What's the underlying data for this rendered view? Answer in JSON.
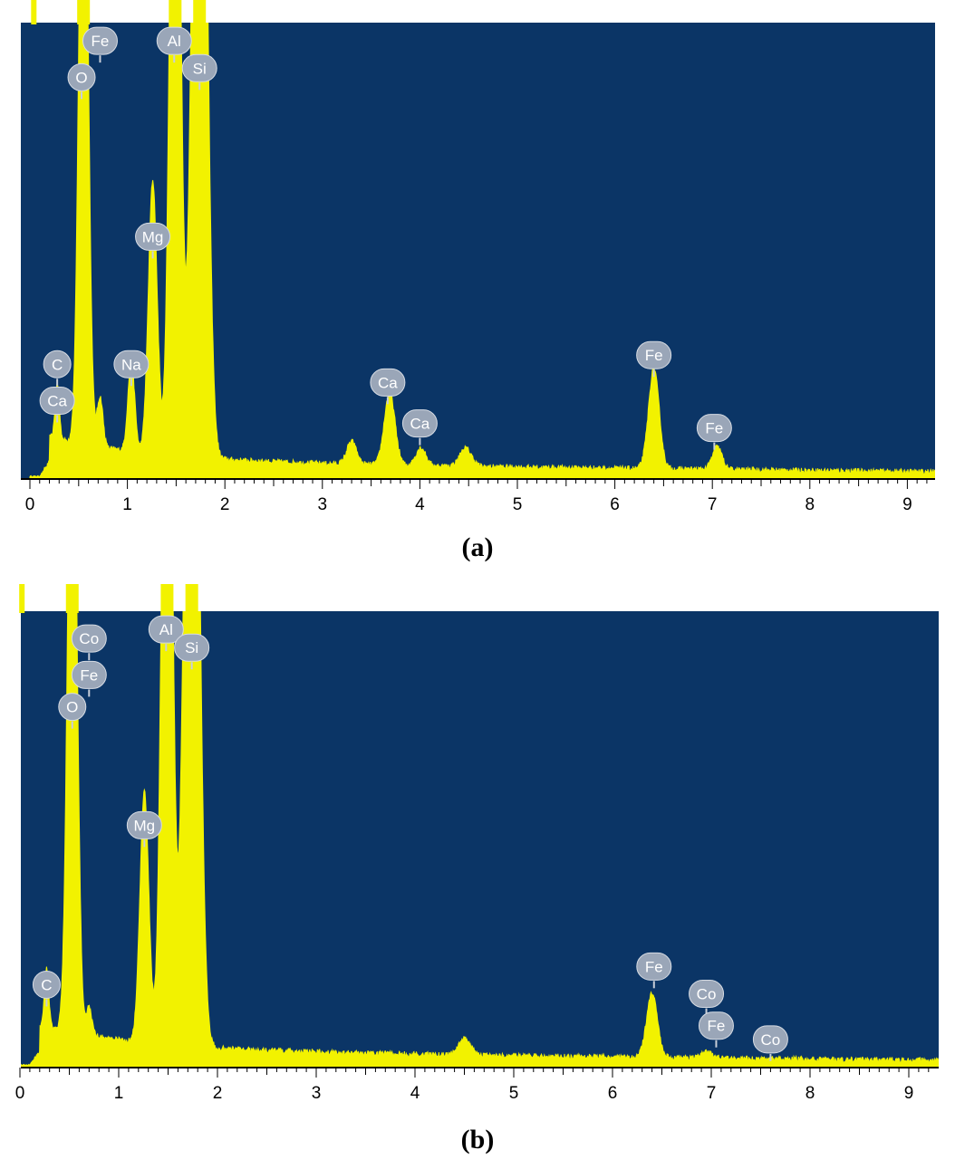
{
  "chart_data": [
    {
      "type": "area",
      "panel_caption": "(a)",
      "xlim": [
        0,
        9.25
      ],
      "ylim": [
        0,
        1
      ],
      "x_ticks": [
        0,
        1,
        2,
        3,
        4,
        5,
        6,
        7,
        8,
        9
      ],
      "colors": {
        "background": "#0b3566",
        "fill": "#f2f200",
        "axis": "#000000",
        "label_badge": "#9aa6b8"
      },
      "clipped_peaks": [
        0.04,
        0.55,
        1.49,
        1.74
      ],
      "peaks": [
        {
          "x": 0.28,
          "h": 0.12,
          "w": 0.022
        },
        {
          "x": 0.55,
          "h": 1.6,
          "w": 0.045
        },
        {
          "x": 0.72,
          "h": 0.11,
          "w": 0.03
        },
        {
          "x": 1.04,
          "h": 0.2,
          "w": 0.035
        },
        {
          "x": 1.26,
          "h": 0.6,
          "w": 0.045
        },
        {
          "x": 1.49,
          "h": 2.0,
          "w": 0.05
        },
        {
          "x": 1.74,
          "h": 2.4,
          "w": 0.065
        },
        {
          "x": 3.3,
          "h": 0.05,
          "w": 0.05
        },
        {
          "x": 3.69,
          "h": 0.16,
          "w": 0.055
        },
        {
          "x": 4.01,
          "h": 0.04,
          "w": 0.05
        },
        {
          "x": 4.47,
          "h": 0.04,
          "w": 0.06
        },
        {
          "x": 6.4,
          "h": 0.22,
          "w": 0.055
        },
        {
          "x": 7.05,
          "h": 0.05,
          "w": 0.05
        }
      ],
      "labels": [
        {
          "text": "Fe",
          "x": 0.72,
          "y": 0.96
        },
        {
          "text": "O",
          "x": 0.53,
          "y": 0.88
        },
        {
          "text": "Al",
          "x": 1.48,
          "y": 0.96
        },
        {
          "text": "Si",
          "x": 1.74,
          "y": 0.9
        },
        {
          "text": "Mg",
          "x": 1.26,
          "y": 0.53
        },
        {
          "text": "C",
          "x": 0.28,
          "y": 0.25
        },
        {
          "text": "Ca",
          "x": 0.28,
          "y": 0.17
        },
        {
          "text": "Na",
          "x": 1.04,
          "y": 0.25
        },
        {
          "text": "Ca",
          "x": 3.67,
          "y": 0.21
        },
        {
          "text": "Ca",
          "x": 4.0,
          "y": 0.12
        },
        {
          "text": "Fe",
          "x": 6.4,
          "y": 0.27
        },
        {
          "text": "Fe",
          "x": 7.02,
          "y": 0.11
        }
      ]
    },
    {
      "type": "area",
      "panel_caption": "(b)",
      "xlim": [
        0,
        9.25
      ],
      "ylim": [
        0,
        1
      ],
      "x_ticks": [
        0,
        1,
        2,
        3,
        4,
        5,
        6,
        7,
        8,
        9
      ],
      "colors": {
        "background": "#0b3566",
        "fill": "#f2f200",
        "axis": "#000000",
        "label_badge": "#9aa6b8"
      },
      "clipped_peaks": [
        0.02,
        0.53,
        1.49,
        1.74
      ],
      "peaks": [
        {
          "x": 0.27,
          "h": 0.13,
          "w": 0.022
        },
        {
          "x": 0.53,
          "h": 1.6,
          "w": 0.045
        },
        {
          "x": 0.7,
          "h": 0.06,
          "w": 0.03
        },
        {
          "x": 1.26,
          "h": 0.55,
          "w": 0.045
        },
        {
          "x": 1.49,
          "h": 2.0,
          "w": 0.05
        },
        {
          "x": 1.74,
          "h": 2.4,
          "w": 0.065
        },
        {
          "x": 4.5,
          "h": 0.035,
          "w": 0.06
        },
        {
          "x": 6.4,
          "h": 0.14,
          "w": 0.055
        },
        {
          "x": 6.95,
          "h": 0.015,
          "w": 0.05
        }
      ],
      "labels": [
        {
          "text": "Co",
          "x": 0.7,
          "y": 0.94
        },
        {
          "text": "Fe",
          "x": 0.7,
          "y": 0.86
        },
        {
          "text": "O",
          "x": 0.53,
          "y": 0.79
        },
        {
          "text": "Al",
          "x": 1.48,
          "y": 0.96
        },
        {
          "text": "Si",
          "x": 1.74,
          "y": 0.92
        },
        {
          "text": "Mg",
          "x": 1.26,
          "y": 0.53
        },
        {
          "text": "C",
          "x": 0.27,
          "y": 0.18
        },
        {
          "text": "Fe",
          "x": 6.42,
          "y": 0.22
        },
        {
          "text": "Co",
          "x": 6.95,
          "y": 0.16
        },
        {
          "text": "Fe",
          "x": 7.05,
          "y": 0.09
        },
        {
          "text": "Co",
          "x": 7.6,
          "y": 0.06
        }
      ]
    }
  ]
}
